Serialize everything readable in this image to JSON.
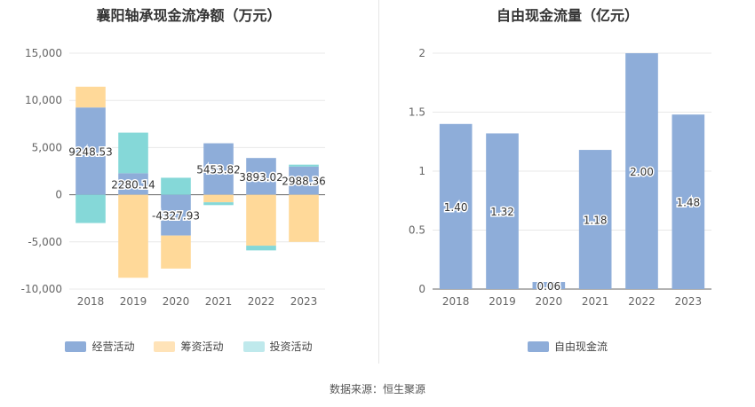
{
  "chart_data": [
    {
      "type": "bar",
      "stacked": true,
      "title": "襄阳轴承现金流净额（万元）",
      "categories": [
        "2018",
        "2019",
        "2020",
        "2021",
        "2022",
        "2023"
      ],
      "series": [
        {
          "name": "经营活动",
          "color": "#8eadd9",
          "values": [
            9248.53,
            2280.14,
            -4327.93,
            5453.82,
            3893.02,
            2988.36
          ]
        },
        {
          "name": "筹资活动",
          "color": "#ffd999",
          "values": [
            2200,
            -8800,
            -3500,
            -800,
            -5400,
            -5000
          ]
        },
        {
          "name": "投资活动",
          "color": "#85d8d8",
          "values": [
            -3000,
            4300,
            1800,
            -300,
            -500,
            200
          ]
        }
      ],
      "data_labels": [
        "9248.53",
        "2280.14",
        "-4327.93",
        "5453.82",
        "3893.02",
        "2988.36"
      ],
      "y_ticks": [
        15000,
        10000,
        5000,
        0,
        -5000,
        -10000
      ],
      "y_tick_labels": [
        "15,000",
        "10,000",
        "5,000",
        "0",
        "-5,000",
        "-10,000"
      ],
      "ylim": [
        -10000,
        15000
      ],
      "grid": true,
      "legend": "bottom",
      "legend_colors": [
        "#8eadd9",
        "#ffe3b8",
        "#bfe9ec"
      ]
    },
    {
      "type": "bar",
      "title": "自由现金流量（亿元）",
      "categories": [
        "2018",
        "2019",
        "2020",
        "2021",
        "2022",
        "2023"
      ],
      "series": [
        {
          "name": "自由现金流",
          "color": "#8eadd9",
          "values": [
            1.4,
            1.32,
            0.06,
            1.18,
            2.0,
            1.48
          ]
        }
      ],
      "data_labels": [
        "1.40",
        "1.32",
        "0.06",
        "1.18",
        "2.00",
        "1.48"
      ],
      "y_ticks": [
        2,
        1.5,
        1,
        0.5,
        0
      ],
      "y_tick_labels": [
        "2",
        "1.5",
        "1",
        "0.5",
        "0"
      ],
      "ylim": [
        0,
        2
      ],
      "grid": true,
      "legend": "bottom"
    }
  ],
  "footer": {
    "source": "数据来源：恒生聚源"
  }
}
